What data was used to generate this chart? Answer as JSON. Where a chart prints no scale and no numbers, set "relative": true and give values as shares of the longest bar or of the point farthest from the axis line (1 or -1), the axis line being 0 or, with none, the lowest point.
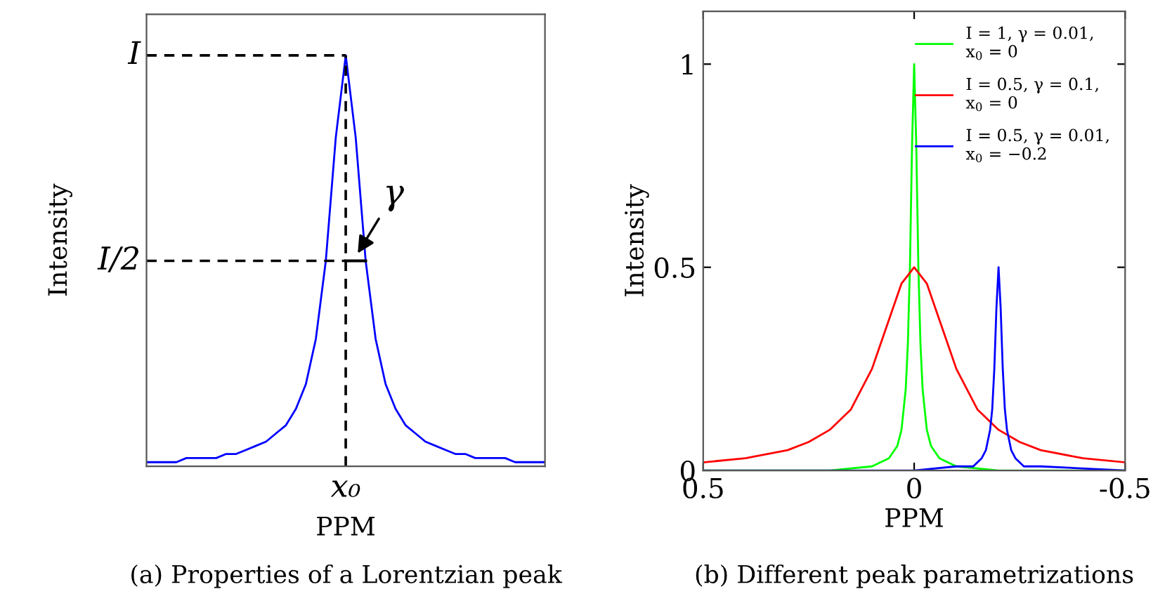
{
  "chart_data": [
    {
      "type": "line",
      "relative": true,
      "xlabel": "PPM",
      "ylabel": "Intensity",
      "categories": [
        null,
        null,
        null,
        null,
        null,
        null,
        null,
        null,
        null,
        null,
        null,
        null,
        null,
        null,
        null,
        null,
        null,
        null,
        null,
        null,
        null,
        null,
        null,
        null,
        null,
        null,
        null,
        null,
        null,
        null,
        null,
        null,
        null,
        null,
        null,
        null,
        null,
        null,
        null,
        null,
        null
      ],
      "series": [
        {
          "color": "#0000ff",
          "values": [
            0.01,
            0.01,
            0.01,
            0.01,
            0.02,
            0.02,
            0.02,
            0.02,
            0.03,
            0.03,
            0.04,
            0.05,
            0.06,
            0.08,
            0.1,
            0.14,
            0.2,
            0.31,
            0.5,
            0.8,
            1,
            0.8,
            0.5,
            0.31,
            0.2,
            0.14,
            0.1,
            0.08,
            0.06,
            0.05,
            0.04,
            0.03,
            0.03,
            0.02,
            0.02,
            0.02,
            0.02,
            0.01,
            0.01,
            0.01,
            0.01
          ]
        }
      ],
      "ref_lines": [
        {
          "axis": "y",
          "value": 1,
          "label": "I",
          "line_style": "dashed",
          "color": "#000000"
        },
        {
          "axis": "y",
          "value": 0.5,
          "label": "I/2",
          "line_style": "dashed",
          "color": "#000000"
        }
      ],
      "annotations": [
        "x₀",
        "γ",
        "(a) Properties of a Lorentzian peak"
      ]
    },
    {
      "type": "line",
      "xlabel": "PPM",
      "ylabel": "Intensity",
      "xlim": [
        0.5,
        -0.5
      ],
      "xticks": [
        0.5,
        0,
        {
          "value": -0.5,
          "label": "-0.5"
        }
      ],
      "ylim": [
        0,
        1.13
      ],
      "yticks": [
        0,
        0.5,
        1
      ],
      "legend": "top right",
      "series": [
        {
          "name": "I = 1, γ = 0.01,\nx$_{0}$ = 0",
          "color": "#00ff00",
          "x": [
            -0.5,
            -0.3,
            -0.2,
            -0.1,
            -0.06,
            -0.04,
            -0.03,
            -0.02,
            -0.015,
            -0.01,
            -0.005,
            0,
            0.005,
            0.01,
            0.015,
            0.02,
            0.03,
            0.04,
            0.06,
            0.1,
            0.2,
            0.3,
            0.5
          ],
          "values": [
            0,
            0,
            0,
            0.01,
            0.03,
            0.06,
            0.1,
            0.2,
            0.31,
            0.5,
            0.8,
            1,
            0.8,
            0.5,
            0.31,
            0.2,
            0.1,
            0.06,
            0.03,
            0.01,
            0,
            0,
            0
          ]
        },
        {
          "name": "I = 0.5, γ = 0.1,\nx$_{0}$ = 0",
          "color": "#ff0000",
          "x": [
            -0.5,
            -0.4,
            -0.3,
            -0.25,
            -0.2,
            -0.15,
            -0.1,
            -0.07,
            -0.05,
            -0.03,
            0,
            0.03,
            0.05,
            0.07,
            0.1,
            0.15,
            0.2,
            0.25,
            0.3,
            0.4,
            0.5
          ],
          "values": [
            0.02,
            0.03,
            0.05,
            0.07,
            0.1,
            0.15,
            0.25,
            0.34,
            0.4,
            0.46,
            0.5,
            0.46,
            0.4,
            0.34,
            0.25,
            0.15,
            0.1,
            0.07,
            0.05,
            0.03,
            0.02
          ]
        },
        {
          "name": "I = 0.5, γ = 0.01,\nx$_{0}$ = −0.2",
          "color": "#0000ff",
          "x": [
            -0.5,
            -0.3,
            -0.26,
            -0.24,
            -0.23,
            -0.22,
            -0.215,
            -0.21,
            -0.205,
            -0.2,
            -0.195,
            -0.19,
            -0.185,
            -0.18,
            -0.17,
            -0.16,
            -0.14,
            -0.1,
            0,
            0.1,
            0.5
          ],
          "values": [
            0,
            0.01,
            0.01,
            0.03,
            0.05,
            0.1,
            0.15,
            0.25,
            0.4,
            0.5,
            0.4,
            0.25,
            0.15,
            0.1,
            0.05,
            0.03,
            0.01,
            0.01,
            0,
            0,
            0
          ]
        }
      ],
      "annotations": [
        "(b) Different peak parametrizations"
      ]
    }
  ]
}
